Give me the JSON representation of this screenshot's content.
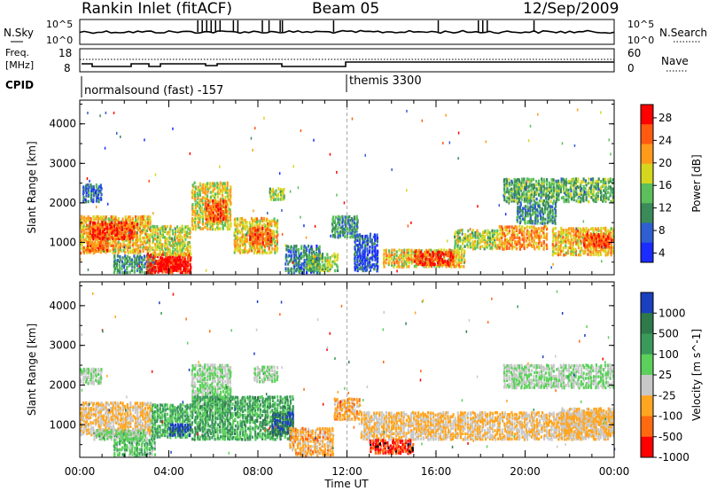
{
  "header": {
    "station": "Rankin Inlet (fitACF)",
    "beam": "Beam 05",
    "date": "12/Sep/2009"
  },
  "noise_panel": {
    "left_label": "N.Sky",
    "right_label": "N.Search",
    "left_ticks": [
      "10^5",
      "10^0"
    ],
    "right_ticks": [
      "10^5",
      "10^0"
    ]
  },
  "freq_panel": {
    "left_label_1": "Freq.",
    "left_label_2": "[MHz]",
    "right_label": "Nave",
    "left_ticks": [
      "18",
      "8"
    ],
    "right_ticks": [
      "60",
      "0"
    ]
  },
  "cpid_panel": {
    "label": "CPID",
    "modes": [
      {
        "name": "normalsound (fast) -157",
        "start_hour": 0
      },
      {
        "name": "themis 3300",
        "start_hour": 12
      }
    ]
  },
  "x_axis": {
    "title": "Time UT",
    "tick_labels": [
      "00:00",
      "04:00",
      "08:00",
      "12:00",
      "16:00",
      "20:00",
      "00:00"
    ]
  },
  "chart_data": [
    {
      "type": "heatmap",
      "title": "Power",
      "ylabel": "Slant Range [km]",
      "xlabel": "Time UT",
      "xlim": [
        0,
        24
      ],
      "ylim": [
        180,
        4600
      ],
      "y_ticks": [
        1000,
        2000,
        3000,
        4000
      ],
      "colorbar": {
        "label": "Power [dB]",
        "ticks": [
          "28",
          "24",
          "20",
          "16",
          "12",
          "8",
          "4"
        ],
        "range": [
          0,
          30
        ]
      },
      "colors": [
        "#1a2cff",
        "#2f5fd0",
        "#3a8a5a",
        "#5bbf5b",
        "#d6d61e",
        "#ff9a1a",
        "#ff5a10",
        "#ff0000"
      ],
      "regions": [
        {
          "t": [
            0.1,
            1.0
          ],
          "r": [
            2000,
            2450
          ],
          "v": 7
        },
        {
          "t": [
            0.0,
            3.2
          ],
          "r": [
            700,
            1650
          ],
          "v": 19
        },
        {
          "t": [
            0.4,
            2.6
          ],
          "r": [
            1050,
            1500
          ],
          "v": 25
        },
        {
          "t": [
            0.3,
            1.3
          ],
          "r": [
            750,
            1000
          ],
          "v": 24
        },
        {
          "t": [
            1.5,
            3.4
          ],
          "r": [
            200,
            650
          ],
          "v": 10
        },
        {
          "t": [
            3.0,
            5.0
          ],
          "r": [
            200,
            700
          ],
          "v": 28
        },
        {
          "t": [
            3.5,
            4.8
          ],
          "r": [
            250,
            550
          ],
          "v": 30
        },
        {
          "t": [
            3.2,
            5.0
          ],
          "r": [
            650,
            1400
          ],
          "v": 16
        },
        {
          "t": [
            5.0,
            6.8
          ],
          "r": [
            1300,
            2500
          ],
          "v": 17
        },
        {
          "t": [
            5.6,
            6.6
          ],
          "r": [
            1500,
            2050
          ],
          "v": 25
        },
        {
          "t": [
            6.9,
            8.9
          ],
          "r": [
            700,
            1600
          ],
          "v": 18
        },
        {
          "t": [
            7.6,
            8.6
          ],
          "r": [
            900,
            1350
          ],
          "v": 24
        },
        {
          "t": [
            8.5,
            9.2
          ],
          "r": [
            2050,
            2350
          ],
          "v": 15
        },
        {
          "t": [
            9.2,
            10.8
          ],
          "r": [
            200,
            900
          ],
          "v": 8
        },
        {
          "t": [
            10.2,
            11.6
          ],
          "r": [
            250,
            700
          ],
          "v": 14
        },
        {
          "t": [
            11.3,
            12.5
          ],
          "r": [
            1100,
            1650
          ],
          "v": 10
        },
        {
          "t": [
            12.3,
            13.4
          ],
          "r": [
            250,
            1200
          ],
          "v": 5
        },
        {
          "t": [
            13.6,
            17.3
          ],
          "r": [
            350,
            800
          ],
          "v": 18
        },
        {
          "t": [
            15.0,
            16.8
          ],
          "r": [
            400,
            750
          ],
          "v": 26
        },
        {
          "t": [
            16.8,
            18.8
          ],
          "r": [
            800,
            1300
          ],
          "v": 15
        },
        {
          "t": [
            18.8,
            21.0
          ],
          "r": [
            800,
            1400
          ],
          "v": 21
        },
        {
          "t": [
            19.6,
            21.4
          ],
          "r": [
            1450,
            2000
          ],
          "v": 9
        },
        {
          "t": [
            19.0,
            24.0
          ],
          "r": [
            2000,
            2600
          ],
          "v": 12
        },
        {
          "t": [
            21.2,
            24.0
          ],
          "r": [
            650,
            1350
          ],
          "v": 19
        },
        {
          "t": [
            22.6,
            23.9
          ],
          "r": [
            850,
            1200
          ],
          "v": 25
        }
      ]
    },
    {
      "type": "heatmap",
      "title": "Velocity",
      "ylabel": "Slant Range [km]",
      "xlabel": "Time UT",
      "xlim": [
        0,
        24
      ],
      "ylim": [
        180,
        4600
      ],
      "y_ticks": [
        1000,
        2000,
        3000,
        4000
      ],
      "colorbar": {
        "label": "Velocity [m s^-1]",
        "ticks": [
          "1000",
          "500",
          "100",
          "25",
          "-25",
          "-100",
          "-500",
          "-1000"
        ],
        "range": [
          -1100,
          1100
        ]
      },
      "colors": [
        "#1a3fbf",
        "#2f7a4a",
        "#3a9a5a",
        "#5bd05b",
        "#c8c8c8",
        "#ffa520",
        "#ff6a10",
        "#ff0000"
      ],
      "regions": [
        {
          "t": [
            0.0,
            1.0
          ],
          "r": [
            2000,
            2400
          ],
          "v": 0
        },
        {
          "t": [
            0.0,
            3.2
          ],
          "r": [
            700,
            1550
          ],
          "v": -300
        },
        {
          "t": [
            0.6,
            3.0
          ],
          "r": [
            600,
            850
          ],
          "v": 60
        },
        {
          "t": [
            1.5,
            3.4
          ],
          "r": [
            200,
            650
          ],
          "v": 200
        },
        {
          "t": [
            3.2,
            5.0
          ],
          "r": [
            650,
            1500
          ],
          "v": 300
        },
        {
          "t": [
            4.0,
            5.0
          ],
          "r": [
            700,
            1000
          ],
          "v": 900
        },
        {
          "t": [
            5.0,
            6.8
          ],
          "r": [
            1300,
            2500
          ],
          "v": 0
        },
        {
          "t": [
            5.0,
            9.6
          ],
          "r": [
            600,
            1700
          ],
          "v": 350
        },
        {
          "t": [
            7.8,
            8.9
          ],
          "r": [
            2050,
            2450
          ],
          "v": 0
        },
        {
          "t": [
            8.6,
            9.6
          ],
          "r": [
            700,
            1300
          ],
          "v": 800
        },
        {
          "t": [
            9.4,
            11.4
          ],
          "r": [
            200,
            900
          ],
          "v": -400
        },
        {
          "t": [
            11.4,
            12.6
          ],
          "r": [
            1100,
            1650
          ],
          "v": -400
        },
        {
          "t": [
            12.6,
            24.0
          ],
          "r": [
            600,
            1300
          ],
          "v": -300
        },
        {
          "t": [
            13.0,
            15.0
          ],
          "r": [
            250,
            600
          ],
          "v": -900
        },
        {
          "t": [
            19.0,
            24.0
          ],
          "r": [
            1900,
            2500
          ],
          "v": 0
        },
        {
          "t": [
            21.6,
            24.0
          ],
          "r": [
            700,
            1400
          ],
          "v": -300
        }
      ]
    }
  ]
}
